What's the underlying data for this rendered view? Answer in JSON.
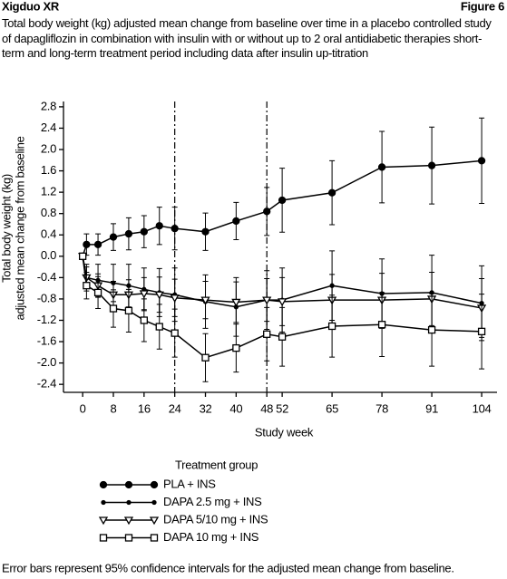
{
  "header": {
    "title": "Xigduo XR",
    "figure": "Figure 6"
  },
  "caption": "Total body weight (kg) adjusted mean change from baseline over time in a placebo controlled study of dapagliflozin in combination with insulin with or without up to 2 oral antidiabetic therapies short-term and long-term treatment period including data after insulin up-titration",
  "footnote": "Error bars represent 95% confidence intervals for the adjusted mean change from baseline.",
  "chart_data": {
    "type": "line",
    "xlabel": "Study week",
    "ylabel": [
      "Total body weight (kg)",
      "adjusted mean change from baseline"
    ],
    "xlim": [
      -5,
      108
    ],
    "ylim": [
      -2.55,
      2.9
    ],
    "xticks": [
      0,
      8,
      16,
      24,
      32,
      40,
      48,
      52,
      65,
      78,
      91,
      104
    ],
    "yticks": [
      2.8,
      2.4,
      {
        "value": 2,
        "label": "2.0"
      },
      1.6,
      1.2,
      0.8,
      0.4,
      {
        "value": 0,
        "label": "0.0"
      },
      -0.4,
      -0.8,
      -1.2,
      -1.6,
      {
        "value": -2,
        "label": "-2.0"
      },
      -2.4
    ],
    "reference_lines": [
      24,
      48
    ],
    "x": [
      0,
      1,
      4,
      8,
      12,
      16,
      20,
      24,
      32,
      40,
      48,
      52,
      65,
      78,
      91,
      104
    ],
    "legend_title": "Treatment group",
    "series": [
      {
        "name": "PLA + INS",
        "marker": "big-dot",
        "color": "#000",
        "values": [
          0,
          0.22,
          0.22,
          0.36,
          0.42,
          0.46,
          0.57,
          0.52,
          0.46,
          0.66,
          0.84,
          1.05,
          1.19,
          1.67,
          1.7,
          1.79
        ],
        "errors": [
          0,
          0.2,
          0.2,
          0.25,
          0.3,
          0.3,
          0.35,
          0.4,
          0.35,
          0.35,
          0.45,
          0.6,
          0.6,
          0.67,
          0.72,
          0.8
        ]
      },
      {
        "name": "DAPA 2.5 mg + INS",
        "marker": "small-dot",
        "color": "#000",
        "values": [
          0,
          -0.4,
          -0.45,
          -0.5,
          -0.55,
          -0.62,
          -0.68,
          -0.72,
          -0.85,
          -0.95,
          -0.82,
          -0.82,
          -0.55,
          -0.7,
          -0.68,
          -0.88
        ],
        "errors": [
          0,
          0.25,
          0.3,
          0.35,
          0.4,
          0.4,
          0.45,
          0.5,
          0.5,
          0.55,
          0.55,
          0.6,
          0.65,
          0.65,
          0.7,
          0.7
        ]
      },
      {
        "name": "DAPA 5/10 mg + INS",
        "marker": "triangle",
        "color": "#000",
        "values": [
          0,
          -0.4,
          -0.55,
          -0.72,
          -0.72,
          -0.7,
          -0.72,
          -0.78,
          -0.82,
          -0.86,
          -0.82,
          -0.85,
          -0.82,
          -0.82,
          -0.8,
          -0.97
        ],
        "errors": [
          0,
          0.2,
          0.22,
          0.25,
          0.28,
          0.3,
          0.33,
          0.35,
          0.35,
          0.38,
          0.4,
          0.45,
          0.48,
          0.5,
          0.5,
          0.55
        ]
      },
      {
        "name": "DAPA 10 mg + INS",
        "marker": "square",
        "color": "#000",
        "values": [
          0,
          -0.55,
          -0.68,
          -0.98,
          -1.02,
          -1.2,
          -1.32,
          -1.44,
          -1.9,
          -1.72,
          -1.46,
          -1.51,
          -1.31,
          -1.28,
          -1.38,
          -1.41
        ],
        "errors": [
          0,
          0.25,
          0.3,
          0.35,
          0.4,
          0.4,
          0.42,
          0.45,
          0.45,
          0.45,
          0.5,
          0.55,
          0.58,
          0.6,
          0.68,
          0.7
        ]
      }
    ]
  }
}
